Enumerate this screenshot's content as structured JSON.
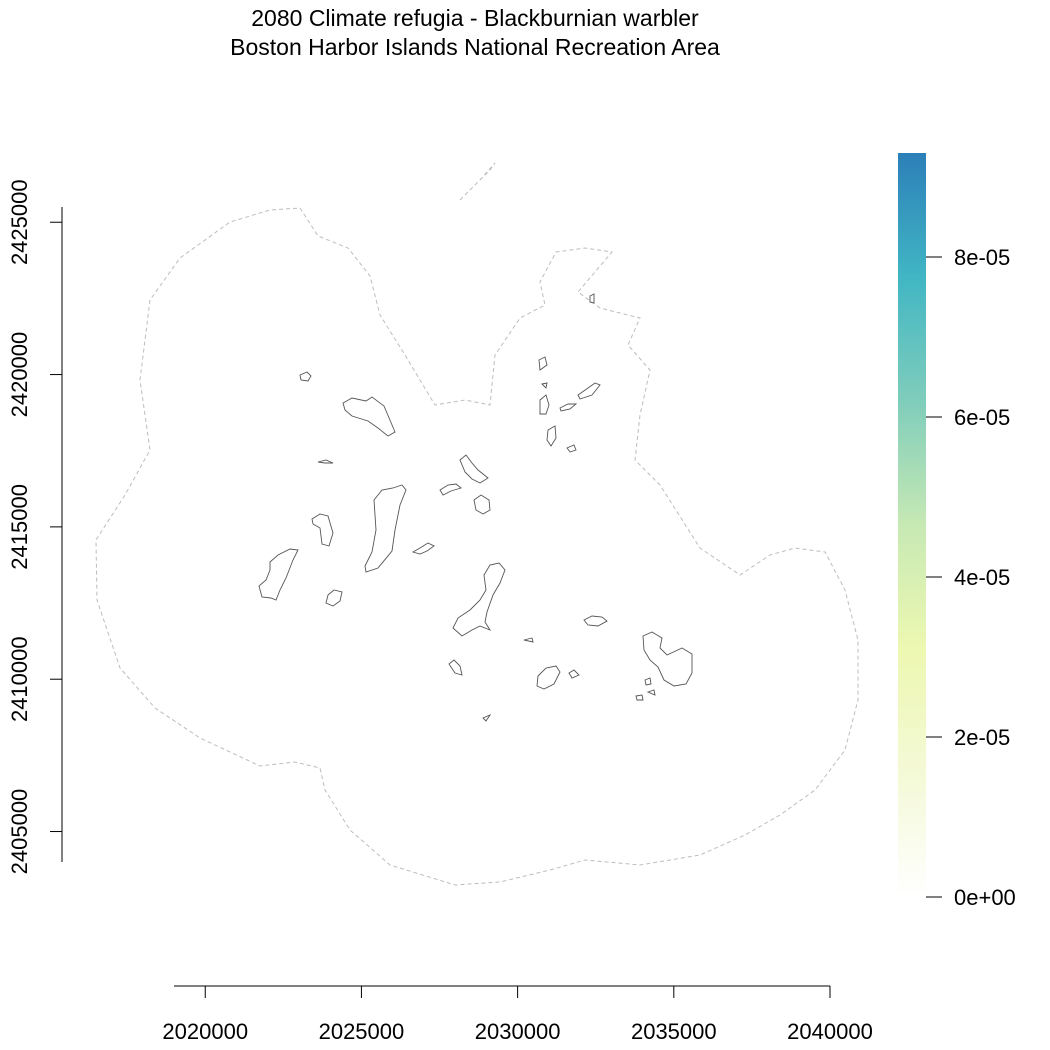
{
  "title": "2080 Climate refugia - Blackburnian warbler",
  "subtitle": "Boston Harbor Islands National Recreation Area",
  "map": {
    "x_axis": {
      "range": [
        2019000,
        2040000
      ],
      "ticks": [
        2020000,
        2025000,
        2030000,
        2035000,
        2040000
      ],
      "tick_labels": [
        "2020000",
        "2025000",
        "2030000",
        "2035000",
        "2040000"
      ]
    },
    "y_axis": {
      "range": [
        2404000,
        2425500
      ],
      "ticks": [
        2405000,
        2410000,
        2415000,
        2420000,
        2425000
      ],
      "tick_labels": [
        "2405000",
        "2410000",
        "2415000",
        "2420000",
        "2425000"
      ]
    },
    "legend": {
      "type": "continuous color ramp",
      "placement": "right",
      "min": 0,
      "max": 9.3e-05,
      "ticks": [
        0,
        2e-05,
        4e-05,
        6e-05,
        8e-05
      ],
      "tick_labels": [
        "0e+00",
        "2e-05",
        "4e-05",
        "6e-05",
        "8e-05"
      ],
      "colors": [
        "#ffffff",
        "#f4f9d6",
        "#edf8b1",
        "#c7e9b4",
        "#7fcdbb",
        "#41b6c4",
        "#2c7fb8"
      ]
    },
    "boundary": {
      "style": "dashed",
      "color": "#bdbdbd"
    },
    "islands": {
      "style": "solid outline",
      "color": "#555555"
    }
  }
}
